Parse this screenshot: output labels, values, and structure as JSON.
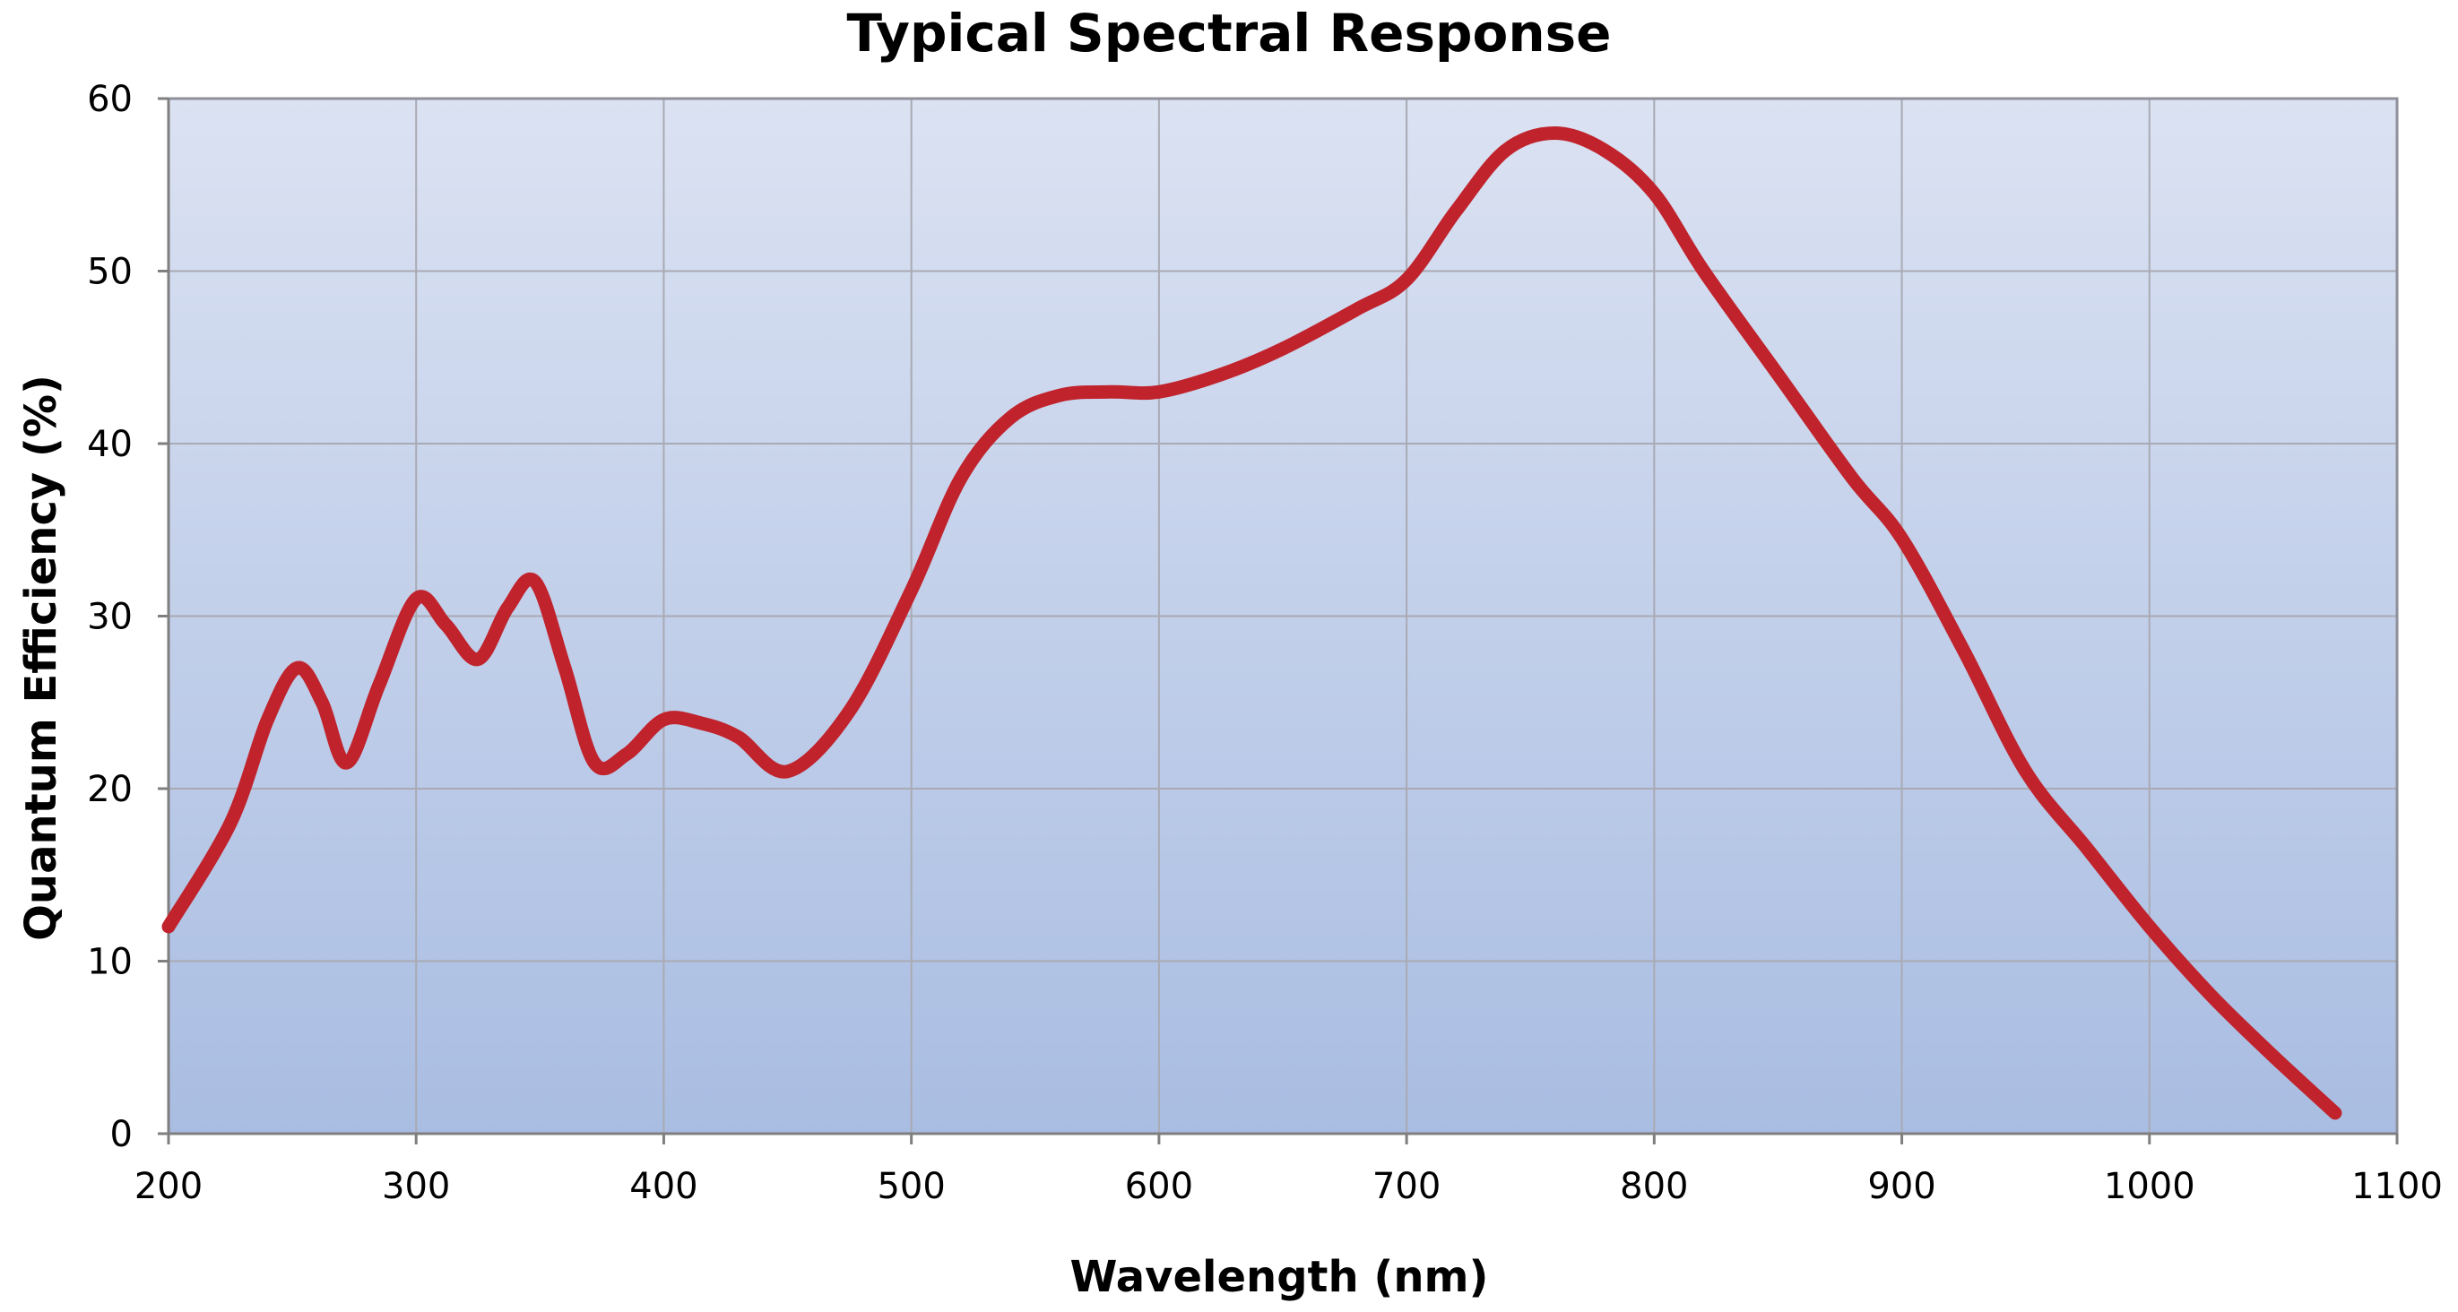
{
  "chart_data": {
    "type": "line",
    "title": "Typical Spectral Response",
    "xlabel": "Wavelength (nm)",
    "ylabel": "Quantum Efficiency (%)",
    "xlim": [
      200,
      1100
    ],
    "ylim": [
      0,
      60
    ],
    "x_ticks": [
      "200",
      "300",
      "400",
      "500",
      "600",
      "700",
      "800",
      "900",
      "1000",
      "1100"
    ],
    "y_ticks": [
      "0",
      "10",
      "20",
      "30",
      "40",
      "50",
      "60"
    ],
    "x_tick_values": [
      200,
      300,
      400,
      500,
      600,
      700,
      800,
      900,
      1000,
      1100
    ],
    "y_tick_values": [
      0,
      10,
      20,
      30,
      40,
      50,
      60
    ],
    "grid": true,
    "legend": "none",
    "colors": {
      "line": "#c0232c",
      "plot_bg_top": "#dbe2f2",
      "plot_bg_bottom": "#a9bde2"
    },
    "series": [
      {
        "x": [
          200,
          225,
          240,
          252,
          262,
          272,
          285,
          300,
          312,
          325,
          337,
          348,
          360,
          372,
          385,
          400,
          415,
          430,
          450,
          475,
          500,
          520,
          540,
          560,
          580,
          600,
          625,
          650,
          680,
          700,
          720,
          740,
          760,
          780,
          800,
          820,
          850,
          880,
          900,
          925,
          950,
          975,
          1000,
          1025,
          1050,
          1075
        ],
        "y": [
          12,
          18,
          24,
          27,
          25,
          21.5,
          26,
          31,
          29.5,
          27.5,
          30.5,
          32,
          27,
          21.5,
          22,
          24,
          23.8,
          23,
          21,
          24.5,
          31.5,
          38,
          41.5,
          42.8,
          43,
          43,
          44,
          45.5,
          47.8,
          49.5,
          53.5,
          57,
          58,
          57,
          54.5,
          50,
          44,
          38,
          34.5,
          28,
          21,
          16.5,
          12,
          8,
          4.5,
          1.2
        ]
      }
    ]
  }
}
